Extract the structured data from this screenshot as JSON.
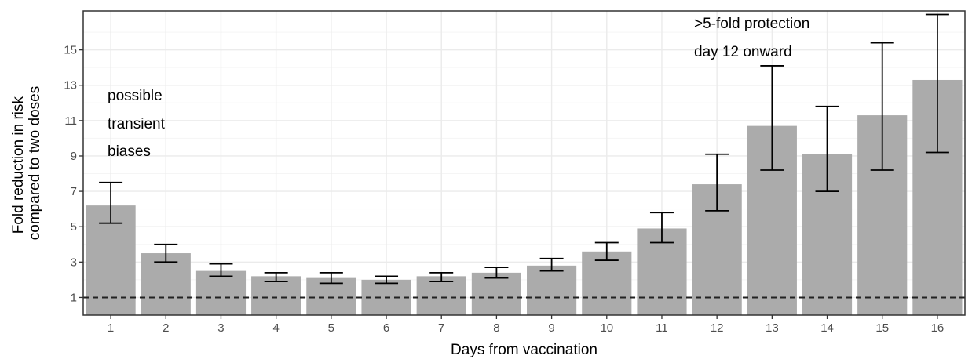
{
  "chart_data": {
    "type": "bar",
    "xlabel": "Days from vaccination",
    "ylabel_lines": [
      "Fold reduction in risk",
      "compared to two doses"
    ],
    "categories": [
      "1",
      "2",
      "3",
      "4",
      "5",
      "6",
      "7",
      "8",
      "9",
      "10",
      "11",
      "12",
      "13",
      "14",
      "15",
      "16"
    ],
    "values": [
      6.2,
      3.5,
      2.5,
      2.2,
      2.1,
      2.0,
      2.2,
      2.4,
      2.8,
      3.6,
      4.9,
      7.4,
      10.7,
      9.1,
      11.3,
      13.3
    ],
    "error_low": [
      5.2,
      3.0,
      2.2,
      1.9,
      1.8,
      1.8,
      1.9,
      2.1,
      2.5,
      3.1,
      4.1,
      5.9,
      8.2,
      7.0,
      8.2,
      9.2
    ],
    "error_high": [
      7.5,
      4.0,
      2.9,
      2.4,
      2.4,
      2.2,
      2.4,
      2.7,
      3.2,
      4.1,
      5.8,
      9.1,
      14.1,
      11.8,
      15.4,
      17.0
    ],
    "yticks": [
      "1",
      "3",
      "5",
      "7",
      "9",
      "11",
      "13",
      "15"
    ],
    "ylim": [
      0,
      17.2
    ],
    "reference_line": 1,
    "grid": true,
    "annotations": [
      {
        "lines": [
          "possible",
          "transient",
          "biases"
        ]
      },
      {
        "lines": [
          ">5-fold protection",
          "day 12 onward"
        ]
      }
    ],
    "colors": {
      "bar": "#ababab",
      "panel_border": "#333333",
      "grid_major": "#ebebeb",
      "grid_minor": "#f5f5f5",
      "reference_line": "#222222",
      "error_bar": "#000000"
    }
  }
}
